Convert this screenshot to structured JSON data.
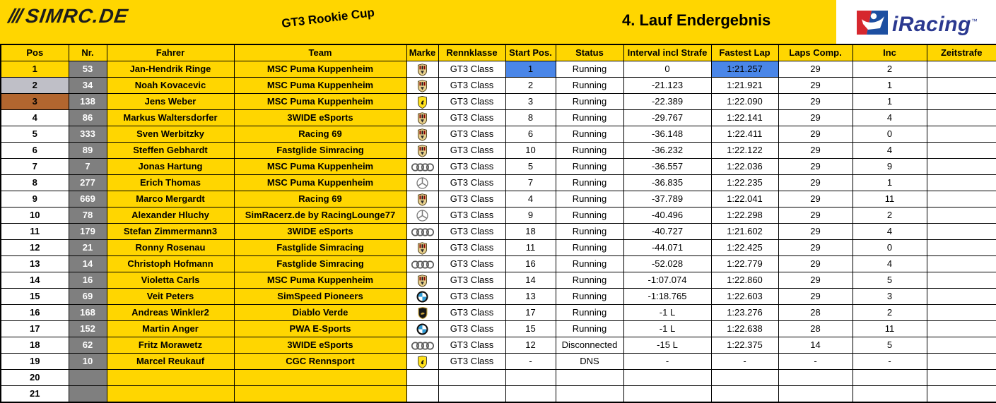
{
  "header": {
    "logo_stripes": "///",
    "logo_text": "SIMRC.DE",
    "series": "GT3 Rookie Cup",
    "title": "4. Lauf Endergebnis",
    "iracing": {
      "label": "iRacing",
      "tm": "™"
    }
  },
  "colors": {
    "banner_yellow": "#FFD600",
    "pos_gold": "#FFD600",
    "pos_silver": "#BFBFC7",
    "pos_bronze": "#B2662F",
    "number_gray": "#7F7F7F",
    "highlight_blue": "#4A86E8",
    "iracing_blue": "#2B3990",
    "iracing_red": "#D6272E"
  },
  "table": {
    "columns": [
      {
        "key": "pos",
        "label": "Pos"
      },
      {
        "key": "nr",
        "label": "Nr."
      },
      {
        "key": "fahrer",
        "label": "Fahrer"
      },
      {
        "key": "team",
        "label": "Team"
      },
      {
        "key": "marke",
        "label": "Marke"
      },
      {
        "key": "rennklasse",
        "label": "Rennklasse"
      },
      {
        "key": "start",
        "label": "Start Pos."
      },
      {
        "key": "status",
        "label": "Status"
      },
      {
        "key": "interval",
        "label": "Interval incl Strafe"
      },
      {
        "key": "fastest",
        "label": "Fastest Lap"
      },
      {
        "key": "laps",
        "label": "Laps Comp."
      },
      {
        "key": "inc",
        "label": "Inc"
      },
      {
        "key": "zeitstrafe",
        "label": "Zeitstrafe"
      }
    ],
    "rows": [
      {
        "pos": "1",
        "nr": "53",
        "fahrer": "Jan-Hendrik Ringe",
        "team": "MSC Puma Kuppenheim",
        "marke": "porsche",
        "rennklasse": "GT3 Class",
        "start": "1",
        "status": "Running",
        "interval": "0",
        "fastest": "1:21.257",
        "laps": "29",
        "inc": "2",
        "zeitstrafe": "",
        "medal": "gold",
        "hl_start": true,
        "hl_fastest": true
      },
      {
        "pos": "2",
        "nr": "34",
        "fahrer": "Noah Kovacevic",
        "team": "MSC Puma Kuppenheim",
        "marke": "porsche",
        "rennklasse": "GT3 Class",
        "start": "2",
        "status": "Running",
        "interval": "-21.123",
        "fastest": "1:21.921",
        "laps": "29",
        "inc": "1",
        "zeitstrafe": "",
        "medal": "silver"
      },
      {
        "pos": "3",
        "nr": "138",
        "fahrer": "Jens Weber",
        "team": "MSC Puma Kuppenheim",
        "marke": "ferrari",
        "rennklasse": "GT3 Class",
        "start": "3",
        "status": "Running",
        "interval": "-22.389",
        "fastest": "1:22.090",
        "laps": "29",
        "inc": "1",
        "zeitstrafe": "",
        "medal": "bronze"
      },
      {
        "pos": "4",
        "nr": "86",
        "fahrer": "Markus Waltersdorfer",
        "team": "3WIDE eSports",
        "marke": "porsche",
        "rennklasse": "GT3 Class",
        "start": "8",
        "status": "Running",
        "interval": "-29.767",
        "fastest": "1:22.141",
        "laps": "29",
        "inc": "4",
        "zeitstrafe": ""
      },
      {
        "pos": "5",
        "nr": "333",
        "fahrer": "Sven Werbitzky",
        "team": "Racing 69",
        "marke": "porsche",
        "rennklasse": "GT3 Class",
        "start": "6",
        "status": "Running",
        "interval": "-36.148",
        "fastest": "1:22.411",
        "laps": "29",
        "inc": "0",
        "zeitstrafe": ""
      },
      {
        "pos": "6",
        "nr": "89",
        "fahrer": "Steffen Gebhardt",
        "team": "Fastglide Simracing",
        "marke": "porsche",
        "rennklasse": "GT3 Class",
        "start": "10",
        "status": "Running",
        "interval": "-36.232",
        "fastest": "1:22.122",
        "laps": "29",
        "inc": "4",
        "zeitstrafe": ""
      },
      {
        "pos": "7",
        "nr": "7",
        "fahrer": "Jonas Hartung",
        "team": "MSC Puma Kuppenheim",
        "marke": "audi",
        "rennklasse": "GT3 Class",
        "start": "5",
        "status": "Running",
        "interval": "-36.557",
        "fastest": "1:22.036",
        "laps": "29",
        "inc": "9",
        "zeitstrafe": ""
      },
      {
        "pos": "8",
        "nr": "277",
        "fahrer": "Erich Thomas",
        "team": "MSC Puma Kuppenheim",
        "marke": "mercedes",
        "rennklasse": "GT3 Class",
        "start": "7",
        "status": "Running",
        "interval": "-36.835",
        "fastest": "1:22.235",
        "laps": "29",
        "inc": "1",
        "zeitstrafe": ""
      },
      {
        "pos": "9",
        "nr": "669",
        "fahrer": "Marco Mergardt",
        "team": "Racing 69",
        "marke": "porsche",
        "rennklasse": "GT3 Class",
        "start": "4",
        "status": "Running",
        "interval": "-37.789",
        "fastest": "1:22.041",
        "laps": "29",
        "inc": "11",
        "zeitstrafe": ""
      },
      {
        "pos": "10",
        "nr": "78",
        "fahrer": "Alexander Hluchy",
        "team": "SimRacerz.de by RacingLounge77",
        "marke": "mercedes",
        "rennklasse": "GT3 Class",
        "start": "9",
        "status": "Running",
        "interval": "-40.496",
        "fastest": "1:22.298",
        "laps": "29",
        "inc": "2",
        "zeitstrafe": ""
      },
      {
        "pos": "11",
        "nr": "179",
        "fahrer": "Stefan Zimmermann3",
        "team": "3WIDE eSports",
        "marke": "audi",
        "rennklasse": "GT3 Class",
        "start": "18",
        "status": "Running",
        "interval": "-40.727",
        "fastest": "1:21.602",
        "laps": "29",
        "inc": "4",
        "zeitstrafe": ""
      },
      {
        "pos": "12",
        "nr": "21",
        "fahrer": "Ronny Rosenau",
        "team": "Fastglide Simracing",
        "marke": "porsche",
        "rennklasse": "GT3 Class",
        "start": "11",
        "status": "Running",
        "interval": "-44.071",
        "fastest": "1:22.425",
        "laps": "29",
        "inc": "0",
        "zeitstrafe": ""
      },
      {
        "pos": "13",
        "nr": "14",
        "fahrer": "Christoph Hofmann",
        "team": "Fastglide Simracing",
        "marke": "audi",
        "rennklasse": "GT3 Class",
        "start": "16",
        "status": "Running",
        "interval": "-52.028",
        "fastest": "1:22.779",
        "laps": "29",
        "inc": "4",
        "zeitstrafe": ""
      },
      {
        "pos": "14",
        "nr": "16",
        "fahrer": "Violetta Carls",
        "team": "MSC Puma Kuppenheim",
        "marke": "porsche",
        "rennklasse": "GT3 Class",
        "start": "14",
        "status": "Running",
        "interval": "-1:07.074",
        "fastest": "1:22.860",
        "laps": "29",
        "inc": "5",
        "zeitstrafe": ""
      },
      {
        "pos": "15",
        "nr": "69",
        "fahrer": "Veit Peters",
        "team": "SimSpeed Pioneers",
        "marke": "bmw",
        "rennklasse": "GT3 Class",
        "start": "13",
        "status": "Running",
        "interval": "-1:18.765",
        "fastest": "1:22.603",
        "laps": "29",
        "inc": "3",
        "zeitstrafe": ""
      },
      {
        "pos": "16",
        "nr": "168",
        "fahrer": "Andreas Winkler2",
        "team": "Diablo Verde",
        "marke": "lamborghini",
        "rennklasse": "GT3 Class",
        "start": "17",
        "status": "Running",
        "interval": "-1 L",
        "fastest": "1:23.276",
        "laps": "28",
        "inc": "2",
        "zeitstrafe": ""
      },
      {
        "pos": "17",
        "nr": "152",
        "fahrer": "Martin Anger",
        "team": "PWA E-Sports",
        "marke": "bmw",
        "rennklasse": "GT3 Class",
        "start": "15",
        "status": "Running",
        "interval": "-1 L",
        "fastest": "1:22.638",
        "laps": "28",
        "inc": "11",
        "zeitstrafe": ""
      },
      {
        "pos": "18",
        "nr": "62",
        "fahrer": "Fritz Morawetz",
        "team": "3WIDE eSports",
        "marke": "audi",
        "rennklasse": "GT3 Class",
        "start": "12",
        "status": "Disconnected",
        "interval": "-15 L",
        "fastest": "1:22.375",
        "laps": "14",
        "inc": "5",
        "zeitstrafe": ""
      },
      {
        "pos": "19",
        "nr": "10",
        "fahrer": "Marcel Reukauf",
        "team": "CGC Rennsport",
        "marke": "ferrari",
        "rennklasse": "GT3 Class",
        "start": "-",
        "status": "DNS",
        "interval": "-",
        "fastest": "-",
        "laps": "-",
        "inc": "-",
        "zeitstrafe": ""
      },
      {
        "pos": "20",
        "nr": "",
        "fahrer": "",
        "team": "",
        "marke": "",
        "rennklasse": "",
        "start": "",
        "status": "",
        "interval": "",
        "fastest": "",
        "laps": "",
        "inc": "",
        "zeitstrafe": ""
      },
      {
        "pos": "21",
        "nr": "",
        "fahrer": "",
        "team": "",
        "marke": "",
        "rennklasse": "",
        "start": "",
        "status": "",
        "interval": "",
        "fastest": "",
        "laps": "",
        "inc": "",
        "zeitstrafe": ""
      }
    ]
  }
}
